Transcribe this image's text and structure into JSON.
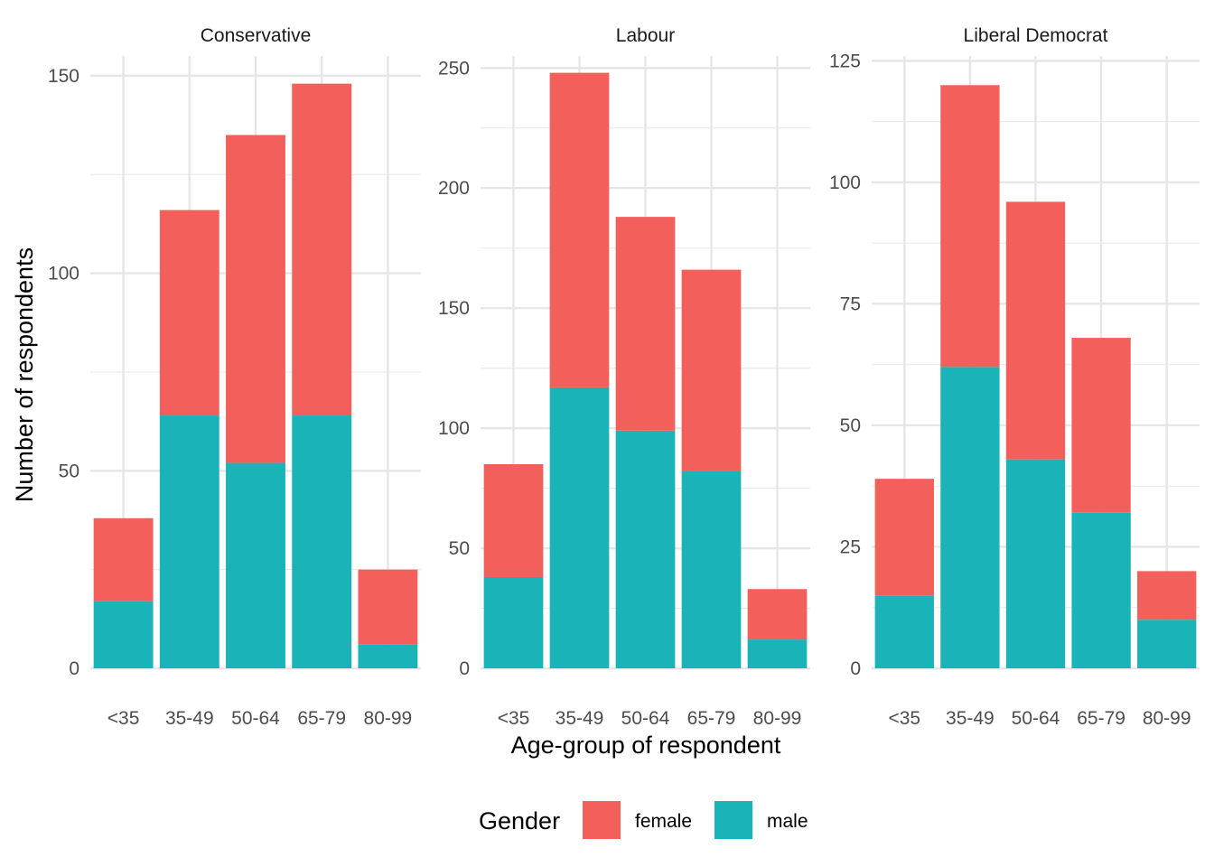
{
  "chart_data": {
    "type": "bar",
    "stacked": true,
    "categories": [
      "<35",
      "35-49",
      "50-64",
      "65-79",
      "80-99"
    ],
    "xlabel": "Age-group of respondent",
    "ylabel": "Number of respondents",
    "grid": true,
    "legend": {
      "title": "Gender",
      "position": "bottom",
      "entries": [
        {
          "label": "female",
          "color": "#F35F5B"
        },
        {
          "label": "male",
          "color": "#1AB4B8"
        }
      ]
    },
    "panels": [
      {
        "title": "Conservative",
        "ylim": [
          0,
          155
        ],
        "yticks": [
          0,
          50,
          100,
          150
        ],
        "series": [
          {
            "name": "male",
            "values": [
              17,
              64,
              52,
              64,
              6
            ]
          },
          {
            "name": "female",
            "values": [
              21,
              52,
              83,
              84,
              19
            ]
          }
        ]
      },
      {
        "title": "Labour",
        "ylim": [
          0,
          255
        ],
        "yticks": [
          0,
          50,
          100,
          150,
          200,
          250
        ],
        "series": [
          {
            "name": "male",
            "values": [
              38,
              117,
              99,
              82,
              12
            ]
          },
          {
            "name": "female",
            "values": [
              47,
              131,
              89,
              84,
              21
            ]
          }
        ]
      },
      {
        "title": "Liberal Democrat",
        "ylim": [
          0,
          126
        ],
        "yticks": [
          0,
          25,
          50,
          75,
          100,
          125
        ],
        "series": [
          {
            "name": "male",
            "values": [
              15,
              62,
              43,
              32,
              10
            ]
          },
          {
            "name": "female",
            "values": [
              24,
              58,
              53,
              36,
              10
            ]
          }
        ]
      }
    ]
  }
}
